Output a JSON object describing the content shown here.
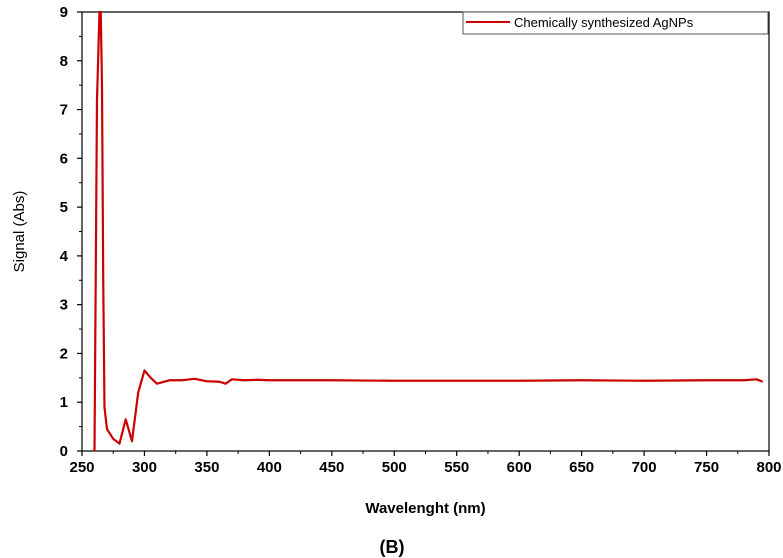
{
  "chart_data": {
    "type": "line",
    "xlabel": "Wavelenght (nm)",
    "ylabel": "Signal (Abs)",
    "panel_label": "(B)",
    "xlim": [
      250,
      800
    ],
    "ylim": [
      0,
      9
    ],
    "x_ticks": [
      "250",
      "300",
      "350",
      "400",
      "450",
      "500",
      "550",
      "600",
      "650",
      "700",
      "750",
      "800"
    ],
    "y_ticks": [
      "0",
      "1",
      "2",
      "3",
      "4",
      "5",
      "6",
      "7",
      "8",
      "9"
    ],
    "grid": false,
    "legend_position": "top-right",
    "series": [
      {
        "name": "Chemically synthesized AgNPs",
        "color": "#cc0000",
        "x": [
          260,
          262,
          264,
          265,
          266,
          267,
          268,
          270,
          275,
          280,
          285,
          290,
          295,
          300,
          305,
          310,
          320,
          330,
          340,
          350,
          360,
          365,
          370,
          380,
          390,
          400,
          450,
          500,
          550,
          600,
          650,
          700,
          750,
          780,
          790,
          795
        ],
        "y": [
          0.0,
          7.2,
          9.0,
          9.0,
          7.5,
          3.5,
          0.9,
          0.45,
          0.25,
          0.15,
          0.65,
          0.2,
          1.2,
          1.65,
          1.5,
          1.38,
          1.45,
          1.45,
          1.48,
          1.43,
          1.42,
          1.38,
          1.47,
          1.45,
          1.46,
          1.45,
          1.45,
          1.44,
          1.44,
          1.44,
          1.45,
          1.44,
          1.45,
          1.45,
          1.47,
          1.42
        ]
      }
    ]
  }
}
